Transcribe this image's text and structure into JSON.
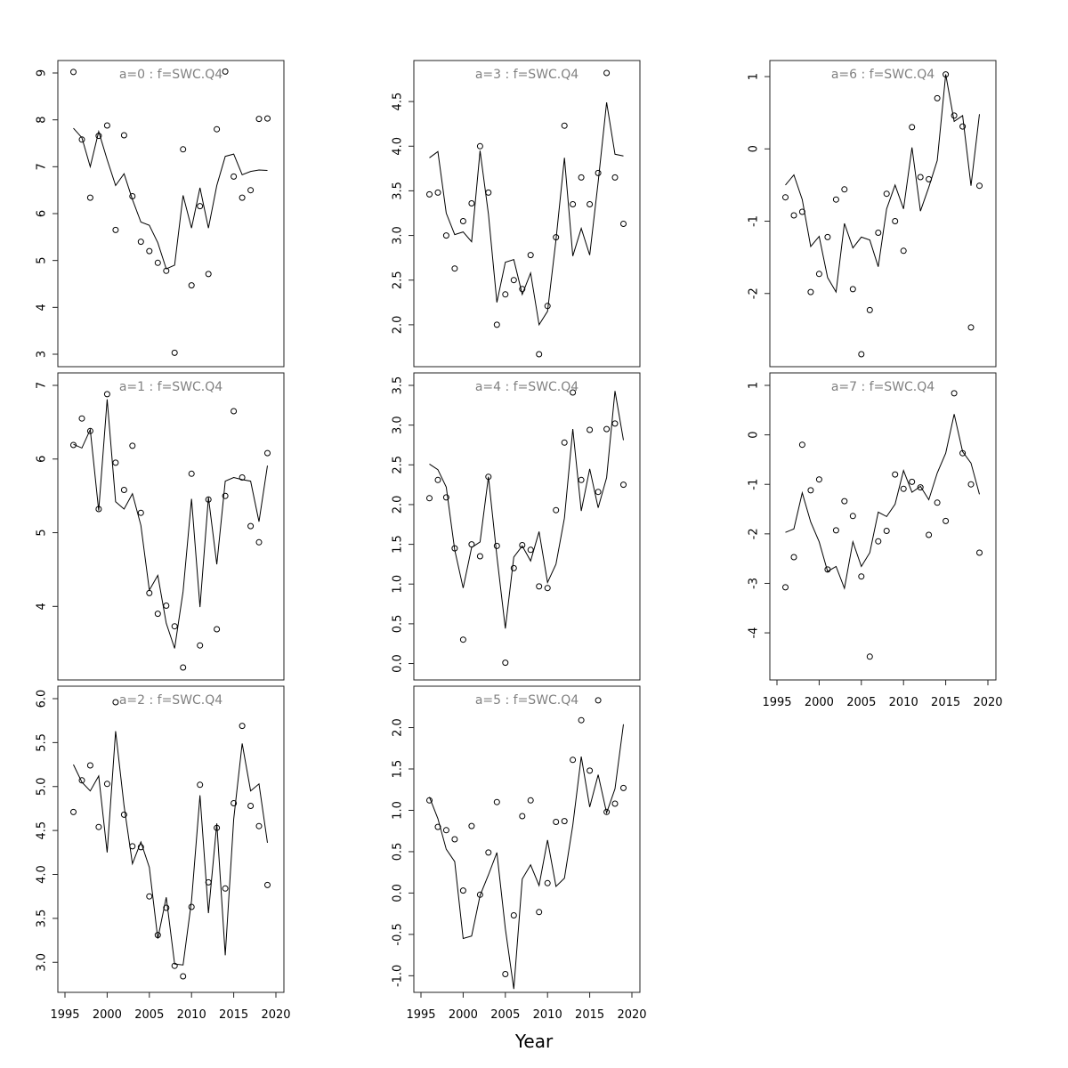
{
  "figure": {
    "xlabel": "Year"
  },
  "chart_data": [
    {
      "type": "scatter",
      "title": "a=0  :  f=SWC.Q4",
      "x": [
        1996,
        1997,
        1998,
        1999,
        2000,
        2001,
        2002,
        2003,
        2004,
        2005,
        2006,
        2007,
        2008,
        2009,
        2010,
        2011,
        2012,
        2013,
        2014,
        2015,
        2016,
        2017,
        2018,
        2019
      ],
      "points": [
        9.02,
        7.58,
        6.34,
        7.66,
        7.88,
        5.65,
        7.67,
        6.37,
        5.4,
        5.2,
        4.95,
        4.78,
        3.03,
        7.37,
        4.47,
        6.16,
        4.71,
        7.8,
        9.03,
        6.79,
        6.34,
        6.5,
        8.02,
        8.03
      ],
      "fitted": [
        7.82,
        7.62,
        7.0,
        7.75,
        7.15,
        6.6,
        6.85,
        6.3,
        5.82,
        5.75,
        5.38,
        4.82,
        4.9,
        6.39,
        5.69,
        6.55,
        5.69,
        6.6,
        7.22,
        7.27,
        6.83,
        6.9,
        6.93,
        6.92
      ],
      "xlim": [
        1995,
        2020
      ],
      "ylim": [
        3,
        9
      ],
      "xticks": [
        1995,
        2000,
        2005,
        2010,
        2015,
        2020
      ],
      "yticks": [
        3,
        4,
        5,
        6,
        7,
        8,
        9
      ],
      "show_xaxis": false
    },
    {
      "type": "scatter",
      "title": "a=1  :  f=SWC.Q4",
      "x": [
        1996,
        1997,
        1998,
        1999,
        2000,
        2001,
        2002,
        2003,
        2004,
        2005,
        2006,
        2007,
        2008,
        2009,
        2010,
        2011,
        2012,
        2013,
        2014,
        2015,
        2016,
        2017,
        2018,
        2019
      ],
      "points": [
        6.19,
        6.55,
        6.38,
        5.32,
        6.88,
        5.95,
        5.58,
        6.18,
        5.27,
        4.18,
        3.9,
        4.01,
        3.73,
        3.17,
        5.8,
        3.47,
        5.45,
        3.69,
        5.5,
        6.65,
        5.75,
        5.09,
        4.87,
        6.08
      ],
      "fitted": [
        6.2,
        6.15,
        6.4,
        5.3,
        6.81,
        5.42,
        5.32,
        5.53,
        5.1,
        4.22,
        4.42,
        3.77,
        3.43,
        4.2,
        5.46,
        3.99,
        5.48,
        4.57,
        5.7,
        5.75,
        5.72,
        5.7,
        5.15,
        5.91
      ],
      "xlim": [
        1995,
        2020
      ],
      "ylim": [
        3.17,
        7.0
      ],
      "xticks": [
        1995,
        2000,
        2005,
        2010,
        2015,
        2020
      ],
      "yticks": [
        4,
        5,
        6,
        7
      ],
      "show_xaxis": false
    },
    {
      "type": "scatter",
      "title": "a=2  :  f=SWC.Q4",
      "x": [
        1996,
        1997,
        1998,
        1999,
        2000,
        2001,
        2002,
        2003,
        2004,
        2005,
        2006,
        2007,
        2008,
        2009,
        2010,
        2011,
        2012,
        2013,
        2014,
        2015,
        2016,
        2017,
        2018,
        2019
      ],
      "points": [
        4.71,
        5.07,
        5.24,
        4.54,
        5.03,
        5.96,
        4.68,
        4.32,
        4.31,
        3.75,
        3.31,
        3.62,
        2.96,
        2.84,
        3.63,
        5.02,
        3.91,
        4.53,
        3.84,
        4.81,
        5.69,
        4.78,
        4.55,
        3.88
      ],
      "fitted": [
        5.25,
        5.05,
        4.95,
        5.12,
        4.25,
        5.63,
        4.78,
        4.12,
        4.37,
        4.08,
        3.27,
        3.74,
        2.98,
        2.97,
        3.7,
        4.9,
        3.56,
        4.58,
        3.08,
        4.63,
        5.49,
        4.95,
        5.03,
        4.36
      ],
      "xlim": [
        1995,
        2020
      ],
      "ylim": [
        2.8,
        6.0
      ],
      "xticks": [
        1995,
        2000,
        2005,
        2010,
        2015,
        2020
      ],
      "yticks": [
        3.0,
        3.5,
        4.0,
        4.5,
        5.0,
        5.5,
        6.0
      ],
      "show_xaxis": true
    },
    {
      "type": "scatter",
      "title": "a=3  :  f=SWC.Q4",
      "x": [
        1996,
        1997,
        1998,
        1999,
        2000,
        2001,
        2002,
        2003,
        2004,
        2005,
        2006,
        2007,
        2008,
        2009,
        2010,
        2011,
        2012,
        2013,
        2014,
        2015,
        2016,
        2017,
        2018,
        2019
      ],
      "points": [
        3.46,
        3.48,
        3.0,
        2.63,
        3.16,
        3.36,
        4.0,
        3.48,
        2.0,
        2.34,
        2.5,
        2.4,
        2.78,
        1.67,
        2.21,
        2.98,
        4.23,
        3.35,
        3.65,
        3.35,
        3.7,
        4.82,
        3.65,
        3.13
      ],
      "fitted": [
        3.87,
        3.94,
        3.25,
        3.01,
        3.04,
        2.93,
        3.95,
        3.24,
        2.25,
        2.7,
        2.73,
        2.34,
        2.58,
        2.0,
        2.15,
        2.95,
        3.87,
        2.77,
        3.08,
        2.78,
        3.6,
        4.49,
        3.91,
        3.89
      ],
      "xlim": [
        1995,
        2020
      ],
      "ylim": [
        1.67,
        4.82
      ],
      "xticks": [
        1995,
        2000,
        2005,
        2010,
        2015,
        2020
      ],
      "yticks": [
        2.0,
        2.5,
        3.0,
        3.5,
        4.0,
        4.5
      ],
      "show_xaxis": false
    },
    {
      "type": "scatter",
      "title": "a=4  :  f=SWC.Q4",
      "x": [
        1996,
        1997,
        1998,
        1999,
        2000,
        2001,
        2002,
        2003,
        2004,
        2005,
        2006,
        2007,
        2008,
        2009,
        2010,
        2011,
        2012,
        2013,
        2014,
        2015,
        2016,
        2017,
        2018,
        2019
      ],
      "points": [
        2.08,
        2.31,
        2.09,
        1.45,
        0.3,
        1.5,
        1.35,
        2.35,
        1.48,
        0.01,
        1.2,
        1.49,
        1.43,
        0.97,
        0.95,
        1.93,
        2.78,
        3.41,
        2.31,
        2.94,
        2.16,
        2.95,
        3.02,
        2.25
      ],
      "fitted": [
        2.51,
        2.44,
        2.22,
        1.43,
        0.95,
        1.46,
        1.53,
        2.35,
        1.35,
        0.44,
        1.34,
        1.48,
        1.29,
        1.66,
        1.02,
        1.25,
        1.83,
        2.95,
        1.92,
        2.45,
        1.96,
        2.34,
        3.43,
        2.81
      ],
      "xlim": [
        1995,
        2020
      ],
      "ylim": [
        -0.05,
        3.5
      ],
      "xticks": [
        1995,
        2000,
        2005,
        2010,
        2015,
        2020
      ],
      "yticks": [
        0.0,
        0.5,
        1.0,
        1.5,
        2.0,
        2.5,
        3.0,
        3.5
      ],
      "show_xaxis": false
    },
    {
      "type": "scatter",
      "title": "a=5  :  f=SWC.Q4",
      "x": [
        1996,
        1997,
        1998,
        1999,
        2000,
        2001,
        2002,
        2003,
        2004,
        2005,
        2006,
        2007,
        2008,
        2009,
        2010,
        2011,
        2012,
        2013,
        2014,
        2015,
        2016,
        2017,
        2018,
        2019
      ],
      "points": [
        1.12,
        0.8,
        0.76,
        0.65,
        0.03,
        0.81,
        -0.02,
        0.49,
        1.1,
        -0.98,
        -0.27,
        0.93,
        1.12,
        -0.23,
        0.12,
        0.86,
        0.87,
        1.61,
        2.09,
        1.48,
        2.33,
        0.98,
        1.08,
        1.27
      ],
      "fitted": [
        1.16,
        0.9,
        0.53,
        0.38,
        -0.55,
        -0.52,
        -0.03,
        0.22,
        0.49,
        -0.43,
        -1.16,
        0.17,
        0.34,
        0.09,
        0.64,
        0.08,
        0.18,
        0.82,
        1.65,
        1.04,
        1.43,
        0.97,
        1.26,
        2.04
      ],
      "xlim": [
        1995,
        2020
      ],
      "ylim": [
        -1.05,
        2.35
      ],
      "xticks": [
        1995,
        2000,
        2005,
        2010,
        2015,
        2020
      ],
      "yticks": [
        -1.0,
        -0.5,
        0.0,
        0.5,
        1.0,
        1.5,
        2.0
      ],
      "show_xaxis": true
    },
    {
      "type": "scatter",
      "title": "a=6  :  f=SWC.Q4",
      "x": [
        1996,
        1997,
        1998,
        1999,
        2000,
        2001,
        2002,
        2003,
        2004,
        2005,
        2006,
        2007,
        2008,
        2009,
        2010,
        2011,
        2012,
        2013,
        2014,
        2015,
        2016,
        2017,
        2018,
        2019
      ],
      "points": [
        -0.67,
        -0.92,
        -0.87,
        -1.98,
        -1.73,
        -1.22,
        -0.7,
        -0.56,
        -1.94,
        -2.84,
        -2.23,
        -1.16,
        -0.62,
        -1.0,
        -1.41,
        0.3,
        -0.39,
        -0.42,
        0.7,
        1.03,
        0.46,
        0.31,
        -2.47,
        -0.51
      ],
      "fitted": [
        -0.5,
        -0.36,
        -0.7,
        -1.35,
        -1.21,
        -1.78,
        -1.98,
        -1.03,
        -1.37,
        -1.22,
        -1.26,
        -1.63,
        -0.83,
        -0.5,
        -0.83,
        0.02,
        -0.86,
        -0.53,
        -0.16,
        1.03,
        0.38,
        0.46,
        -0.51,
        0.48
      ],
      "xlim": [
        1995,
        2020
      ],
      "ylim": [
        -2.84,
        1.05
      ],
      "xticks": [
        1995,
        2000,
        2005,
        2010,
        2015,
        2020
      ],
      "yticks": [
        -2,
        -1,
        0,
        1
      ],
      "show_xaxis": false
    },
    {
      "type": "scatter",
      "title": "a=7  :  f=SWC.Q4",
      "x": [
        1996,
        1997,
        1998,
        1999,
        2000,
        2001,
        2002,
        2003,
        2004,
        2005,
        2006,
        2007,
        2008,
        2009,
        2010,
        2011,
        2012,
        2013,
        2014,
        2015,
        2016,
        2017,
        2018,
        2019
      ],
      "points": [
        -3.08,
        -2.47,
        -0.2,
        -1.12,
        -0.9,
        -2.72,
        -1.93,
        -1.34,
        -1.64,
        -2.86,
        -4.48,
        -2.15,
        -1.94,
        -0.8,
        -1.09,
        -0.95,
        -1.06,
        -2.02,
        -1.37,
        -1.74,
        0.84,
        -0.37,
        -1.0,
        -2.38
      ],
      "fitted": [
        -1.97,
        -1.9,
        -1.17,
        -1.76,
        -2.16,
        -2.76,
        -2.66,
        -3.1,
        -2.16,
        -2.66,
        -2.38,
        -1.56,
        -1.65,
        -1.4,
        -0.72,
        -1.16,
        -1.04,
        -1.31,
        -0.77,
        -0.37,
        0.42,
        -0.34,
        -0.57,
        -1.2
      ],
      "xlim": [
        1995,
        2020
      ],
      "ylim": [
        -4.7,
        1.0
      ],
      "xticks": [
        1995,
        2000,
        2005,
        2010,
        2015,
        2020
      ],
      "yticks": [
        -4,
        -3,
        -2,
        -1,
        0,
        1
      ],
      "show_xaxis": true
    }
  ]
}
